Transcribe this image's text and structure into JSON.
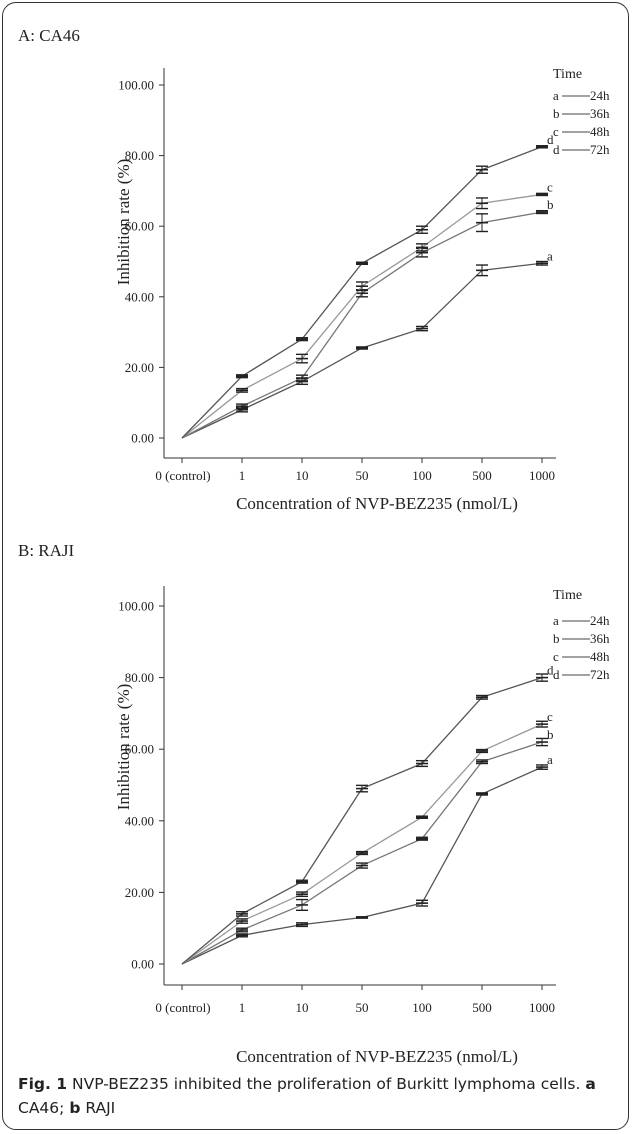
{
  "panels": [
    {
      "label": "A: CA46",
      "xlabel": "Concentration of NVP-BEZ235 (nmol/L)",
      "ylabel": "Inhibition rate (%)",
      "legend_title": "Time",
      "legend_entries": [
        {
          "letter": "a",
          "text": "24h"
        },
        {
          "letter": "b",
          "text": "36h"
        },
        {
          "letter": "c",
          "text": "48h"
        },
        {
          "letter": "d",
          "text": "72h"
        }
      ],
      "ytick_labels": [
        "0.00",
        "20.00",
        "40.00",
        "60.00",
        "80.00",
        "100.00"
      ],
      "xtick_labels": [
        "0 (control)",
        "1",
        "10",
        "50",
        "100",
        "500",
        "1000"
      ]
    },
    {
      "label": "B: RAJI",
      "xlabel": "Concentration of NVP-BEZ235 (nmol/L)",
      "ylabel": "Inhibition rate (%)",
      "legend_title": "Time",
      "legend_entries": [
        {
          "letter": "a",
          "text": "24h"
        },
        {
          "letter": "b",
          "text": "36h"
        },
        {
          "letter": "c",
          "text": "48h"
        },
        {
          "letter": "d",
          "text": "72h"
        }
      ],
      "ytick_labels": [
        "0.00",
        "20.00",
        "40.00",
        "60.00",
        "80.00",
        "100.00"
      ],
      "xtick_labels": [
        "0 (control)",
        "1",
        "10",
        "50",
        "100",
        "500",
        "1000"
      ]
    }
  ],
  "caption": {
    "fig": "Fig. 1",
    "text1": " NVP-BEZ235 inhibited the proliferation of Burkitt lymphoma cells. ",
    "a": "a",
    "text2": " CA46; ",
    "b": "b",
    "text3": " RAJI"
  },
  "chart_data": [
    {
      "type": "line",
      "title": "A: CA46",
      "xlabel": "Concentration of NVP-BEZ235 (nmol/L)",
      "ylabel": "Inhibition rate (%)",
      "categories": [
        "0 (control)",
        "1",
        "10",
        "50",
        "100",
        "500",
        "1000"
      ],
      "ylim": [
        0,
        100
      ],
      "legend": "top-right",
      "series": [
        {
          "name": "a",
          "values": [
            0,
            8,
            16,
            25.5,
            31,
            47.5,
            49.5
          ],
          "errors": [
            0,
            0.6,
            0.8,
            0.3,
            0.6,
            1.5,
            0.5
          ],
          "line_color": "#555555"
        },
        {
          "name": "b",
          "values": [
            0,
            9,
            17,
            41,
            52.5,
            61,
            64
          ],
          "errors": [
            0,
            0.6,
            0.8,
            1.0,
            1.2,
            2.5,
            0.4
          ],
          "line_color": "#777777"
        },
        {
          "name": "c",
          "values": [
            0,
            13.5,
            22.5,
            43,
            54,
            66.5,
            69
          ],
          "errors": [
            0,
            0.5,
            1.2,
            1.2,
            1.0,
            1.5,
            0.3
          ],
          "line_color": "#999999"
        },
        {
          "name": "d",
          "values": [
            0,
            17.5,
            28,
            49.5,
            59,
            76,
            82.5
          ],
          "errors": [
            0,
            0.4,
            0.4,
            0.3,
            1.0,
            1.0,
            0.3
          ],
          "line_color": "#555555"
        }
      ]
    },
    {
      "type": "line",
      "title": "B: RAJI",
      "xlabel": "Concentration of NVP-BEZ235 (nmol/L)",
      "ylabel": "Inhibition rate (%)",
      "categories": [
        "0 (control)",
        "1",
        "10",
        "50",
        "100",
        "500",
        "1000"
      ],
      "ylim": [
        0,
        100
      ],
      "legend": "top-right",
      "series": [
        {
          "name": "a",
          "values": [
            0,
            8,
            11,
            13,
            17,
            47.5,
            55
          ],
          "errors": [
            0,
            0.4,
            0.5,
            0.2,
            0.8,
            0.3,
            0.6
          ],
          "line_color": "#555555"
        },
        {
          "name": "b",
          "values": [
            0,
            9.5,
            16.5,
            27.5,
            35,
            56.5,
            62
          ],
          "errors": [
            0,
            0.5,
            1.5,
            0.7,
            0.4,
            0.5,
            1.0
          ],
          "line_color": "#777777"
        },
        {
          "name": "c",
          "values": [
            0,
            12,
            19.5,
            31,
            41,
            59.5,
            67
          ],
          "errors": [
            0,
            0.6,
            0.6,
            0.4,
            0.3,
            0.4,
            0.8
          ],
          "line_color": "#999999"
        },
        {
          "name": "d",
          "values": [
            0,
            14,
            23,
            49,
            56,
            74.5,
            80
          ],
          "errors": [
            0,
            0.6,
            0.4,
            0.9,
            0.8,
            0.5,
            1.0
          ],
          "line_color": "#555555"
        }
      ]
    }
  ]
}
